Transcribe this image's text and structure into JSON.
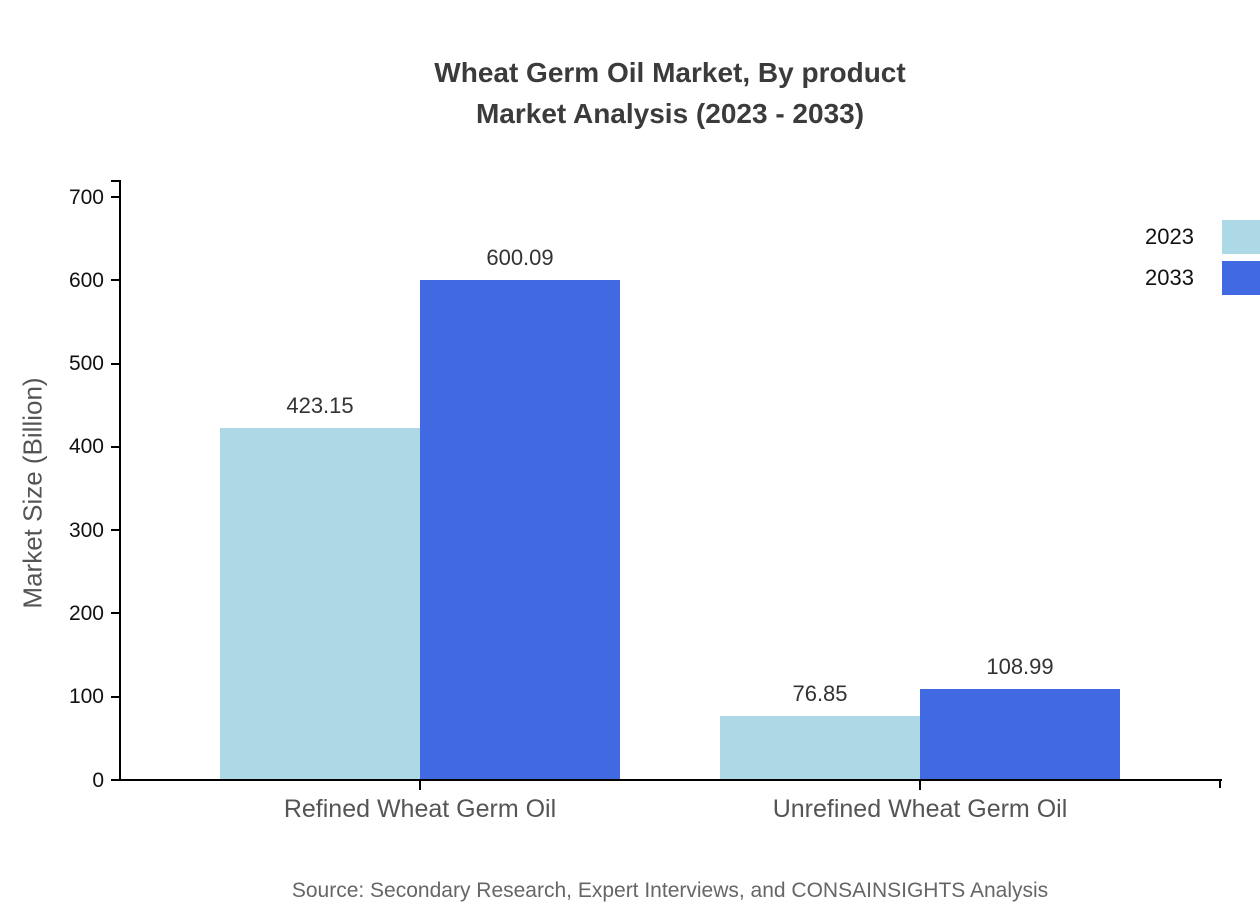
{
  "page": {
    "source_note": "Source: Secondary Research, Expert Interviews, and CONSAINSIGHTS Analysis"
  },
  "chart_data": {
    "type": "bar",
    "title": "Wheat Germ Oil Market, By product Market Analysis (2023 - 2033)",
    "title_line1": "Wheat Germ Oil Market, By product",
    "title_line2": "Market Analysis (2023 - 2033)",
    "xlabel": "",
    "ylabel": "Market Size (Billion)",
    "categories": [
      "Refined Wheat Germ Oil",
      "Unrefined Wheat Germ Oil"
    ],
    "series": [
      {
        "name": "2023",
        "color": "#ADD8E6",
        "values": [
          423.15,
          76.85
        ]
      },
      {
        "name": "2033",
        "color": "#4169E1",
        "values": [
          600.09,
          108.99
        ]
      }
    ],
    "value_labels": [
      [
        "423.15",
        "76.85"
      ],
      [
        "600.09",
        "108.99"
      ]
    ],
    "yticks": [
      0,
      100,
      200,
      300,
      400,
      500,
      600,
      700
    ],
    "ylim": [
      0,
      720
    ],
    "grid": false,
    "legend_position": "top-right",
    "axis_color": "#000000",
    "tick_label_color": "#111111",
    "category_label_color": "#555555",
    "value_label_color": "#333333"
  }
}
